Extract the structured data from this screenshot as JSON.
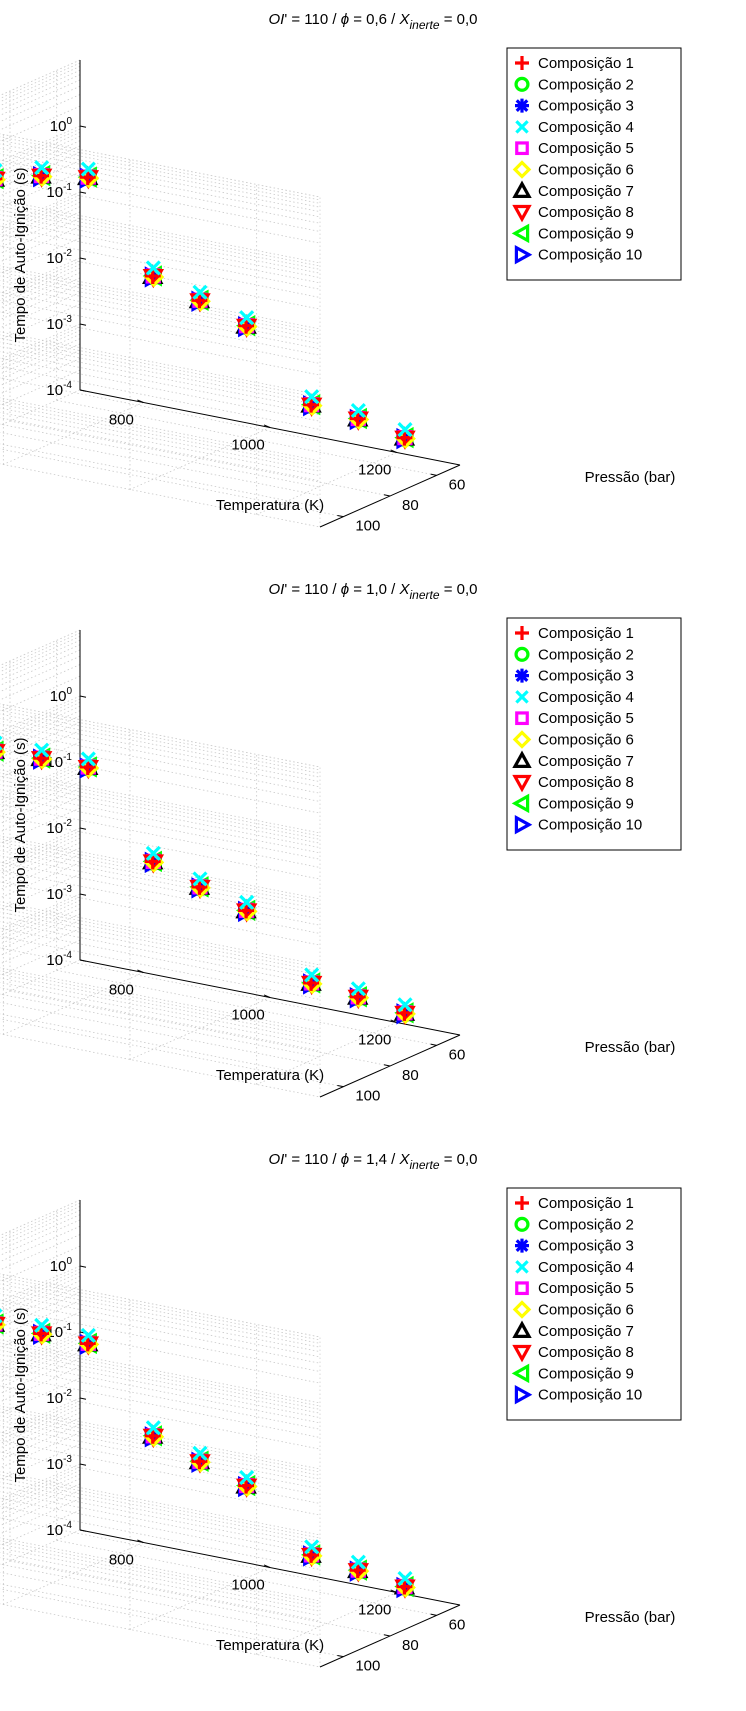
{
  "chart_data": [
    {
      "type": "scatter",
      "title": {
        "prefix": "OI' = 110 / ",
        "phi_symbol": "ϕ",
        "phi_rest": " = 0,6 / X",
        "subscript": "inerte",
        "suffix": " = 0,0"
      },
      "xlabel": "Temperatura (K)",
      "ylabel": "Pressão (bar)",
      "zlabel": "Tempo de Auto-Ignição (s)",
      "x_ticks": [
        "800",
        "1000",
        "1200"
      ],
      "y_ticks": [
        "60",
        "80",
        "100"
      ],
      "z_ticks": [
        {
          "base": "10",
          "exp": "-4"
        },
        {
          "base": "10",
          "exp": "-3"
        },
        {
          "base": "10",
          "exp": "-2"
        },
        {
          "base": "10",
          "exp": "-1"
        },
        {
          "base": "10",
          "exp": "0"
        }
      ],
      "xlim": [
        700,
        1300
      ],
      "ylim": [
        50,
        110
      ],
      "zlim_log10": [
        -4,
        1
      ],
      "z_scale": "log",
      "grid": true,
      "legend_position": "top-right",
      "points": [
        {
          "x": 750,
          "y": 60,
          "z": 0.3
        },
        {
          "x": 750,
          "y": 80,
          "z": 0.65
        },
        {
          "x": 750,
          "y": 100,
          "z": 1.2
        },
        {
          "x": 1000,
          "y": 60,
          "z": 0.005
        },
        {
          "x": 1000,
          "y": 80,
          "z": 0.025
        },
        {
          "x": 1000,
          "y": 100,
          "z": 0.12
        },
        {
          "x": 1250,
          "y": 60,
          "z": 0.0003
        },
        {
          "x": 1250,
          "y": 80,
          "z": 0.0012
        },
        {
          "x": 1250,
          "y": 100,
          "z": 0.004
        }
      ],
      "series": [
        {
          "name": "Composição 1",
          "marker": "plus",
          "color": "#ff0000"
        },
        {
          "name": "Composição 2",
          "marker": "circle",
          "color": "#00ff00"
        },
        {
          "name": "Composição 3",
          "marker": "asterisk",
          "color": "#0000ff"
        },
        {
          "name": "Composição 4",
          "marker": "x",
          "color": "#00ffff"
        },
        {
          "name": "Composição 5",
          "marker": "square",
          "color": "#ff00ff"
        },
        {
          "name": "Composição 6",
          "marker": "diamond",
          "color": "#ffff00"
        },
        {
          "name": "Composição 7",
          "marker": "triangle-up",
          "color": "#000000"
        },
        {
          "name": "Composição 8",
          "marker": "triangle-down",
          "color": "#ff0000"
        },
        {
          "name": "Composição 9",
          "marker": "triangle-left",
          "color": "#00ff00"
        },
        {
          "name": "Composição 10",
          "marker": "triangle-right",
          "color": "#0000ff"
        }
      ]
    },
    {
      "type": "scatter",
      "title": {
        "prefix": "OI' = 110 / ",
        "phi_symbol": "ϕ",
        "phi_rest": " = 1,0 / X",
        "subscript": "inerte",
        "suffix": " = 0,0"
      },
      "xlabel": "Temperatura (K)",
      "ylabel": "Pressão (bar)",
      "zlabel": "Tempo de Auto-Ignição (s)",
      "x_ticks": [
        "800",
        "1000",
        "1200"
      ],
      "y_ticks": [
        "60",
        "80",
        "100"
      ],
      "z_ticks": [
        {
          "base": "10",
          "exp": "-4"
        },
        {
          "base": "10",
          "exp": "-3"
        },
        {
          "base": "10",
          "exp": "-2"
        },
        {
          "base": "10",
          "exp": "-1"
        },
        {
          "base": "10",
          "exp": "0"
        }
      ],
      "xlim": [
        700,
        1300
      ],
      "ylim": [
        50,
        110
      ],
      "zlim_log10": [
        -4,
        1
      ],
      "z_scale": "log",
      "grid": true,
      "legend_position": "top-right",
      "points": [
        {
          "x": 750,
          "y": 60,
          "z": 0.15
        },
        {
          "x": 750,
          "y": 80,
          "z": 0.42
        },
        {
          "x": 750,
          "y": 100,
          "z": 1.1
        },
        {
          "x": 1000,
          "y": 60,
          "z": 0.003
        },
        {
          "x": 1000,
          "y": 80,
          "z": 0.014
        },
        {
          "x": 1000,
          "y": 100,
          "z": 0.07
        },
        {
          "x": 1250,
          "y": 60,
          "z": 0.00025
        },
        {
          "x": 1250,
          "y": 80,
          "z": 0.0009
        },
        {
          "x": 1250,
          "y": 100,
          "z": 0.003
        }
      ],
      "series": [
        {
          "name": "Composição 1",
          "marker": "plus",
          "color": "#ff0000"
        },
        {
          "name": "Composição 2",
          "marker": "circle",
          "color": "#00ff00"
        },
        {
          "name": "Composição 3",
          "marker": "asterisk",
          "color": "#0000ff"
        },
        {
          "name": "Composição 4",
          "marker": "x",
          "color": "#00ffff"
        },
        {
          "name": "Composição 5",
          "marker": "square",
          "color": "#ff00ff"
        },
        {
          "name": "Composição 6",
          "marker": "diamond",
          "color": "#ffff00"
        },
        {
          "name": "Composição 7",
          "marker": "triangle-up",
          "color": "#000000"
        },
        {
          "name": "Composição 8",
          "marker": "triangle-down",
          "color": "#ff0000"
        },
        {
          "name": "Composição 9",
          "marker": "triangle-left",
          "color": "#00ff00"
        },
        {
          "name": "Composição 10",
          "marker": "triangle-right",
          "color": "#0000ff"
        }
      ]
    },
    {
      "type": "scatter",
      "title": {
        "prefix": "OI' = 110 / ",
        "phi_symbol": "ϕ",
        "phi_rest": " = 1,4 / X",
        "subscript": "inerte",
        "suffix": " = 0,0"
      },
      "xlabel": "Temperatura (K)",
      "ylabel": "Pressão (bar)",
      "zlabel": "Tempo de Auto-Ignição (s)",
      "x_ticks": [
        "800",
        "1000",
        "1200"
      ],
      "y_ticks": [
        "60",
        "80",
        "100"
      ],
      "z_ticks": [
        {
          "base": "10",
          "exp": "-4"
        },
        {
          "base": "10",
          "exp": "-3"
        },
        {
          "base": "10",
          "exp": "-2"
        },
        {
          "base": "10",
          "exp": "-1"
        },
        {
          "base": "10",
          "exp": "0"
        }
      ],
      "xlim": [
        700,
        1300
      ],
      "ylim": [
        50,
        110
      ],
      "zlim_log10": [
        -4,
        1
      ],
      "z_scale": "log",
      "grid": true,
      "legend_position": "top-right",
      "points": [
        {
          "x": 750,
          "y": 60,
          "z": 0.12
        },
        {
          "x": 750,
          "y": 80,
          "z": 0.35
        },
        {
          "x": 750,
          "y": 100,
          "z": 1.0
        },
        {
          "x": 1000,
          "y": 60,
          "z": 0.0025
        },
        {
          "x": 1000,
          "y": 80,
          "z": 0.012
        },
        {
          "x": 1000,
          "y": 100,
          "z": 0.06
        },
        {
          "x": 1250,
          "y": 60,
          "z": 0.00022
        },
        {
          "x": 1250,
          "y": 80,
          "z": 0.0008
        },
        {
          "x": 1250,
          "y": 100,
          "z": 0.0028
        }
      ],
      "series": [
        {
          "name": "Composição 1",
          "marker": "plus",
          "color": "#ff0000"
        },
        {
          "name": "Composição 2",
          "marker": "circle",
          "color": "#00ff00"
        },
        {
          "name": "Composição 3",
          "marker": "asterisk",
          "color": "#0000ff"
        },
        {
          "name": "Composição 4",
          "marker": "x",
          "color": "#00ffff"
        },
        {
          "name": "Composição 5",
          "marker": "square",
          "color": "#ff00ff"
        },
        {
          "name": "Composição 6",
          "marker": "diamond",
          "color": "#ffff00"
        },
        {
          "name": "Composição 7",
          "marker": "triangle-up",
          "color": "#000000"
        },
        {
          "name": "Composição 8",
          "marker": "triangle-down",
          "color": "#ff0000"
        },
        {
          "name": "Composição 9",
          "marker": "triangle-left",
          "color": "#00ff00"
        },
        {
          "name": "Composição 10",
          "marker": "triangle-right",
          "color": "#0000ff"
        }
      ]
    }
  ]
}
